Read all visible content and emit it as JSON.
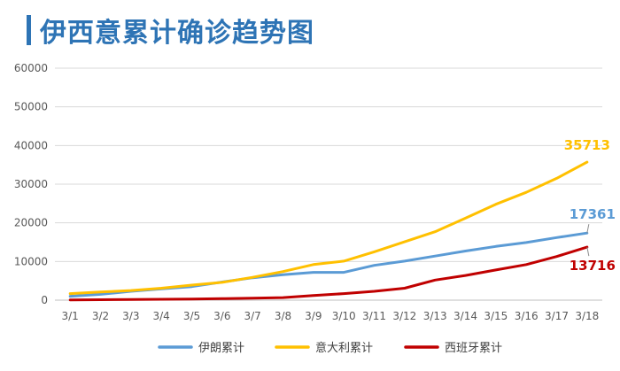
{
  "chart_data": {
    "type": "line",
    "title": "伊西意累计确诊趋势图",
    "categories": [
      "3/1",
      "3/2",
      "3/3",
      "3/4",
      "3/5",
      "3/6",
      "3/7",
      "3/8",
      "3/9",
      "3/10",
      "3/11",
      "3/12",
      "3/13",
      "3/14",
      "3/15",
      "3/16",
      "3/17",
      "3/18"
    ],
    "ylim": [
      0,
      60000
    ],
    "yticks": [
      0,
      10000,
      20000,
      30000,
      40000,
      50000,
      60000
    ],
    "grid": true,
    "legend": "bottom",
    "series": [
      {
        "name": "伊朗累计",
        "color": "#5b9bd5",
        "values": [
          1000,
          1500,
          2300,
          2900,
          3500,
          4700,
          5800,
          6600,
          7200,
          7200,
          9000,
          10100,
          11400,
          12700,
          13900,
          14900,
          16200,
          17361
        ],
        "end_label": "17361"
      },
      {
        "name": "意大利累计",
        "color": "#ffc000",
        "values": [
          1700,
          2100,
          2500,
          3100,
          3900,
          4600,
          5900,
          7400,
          9200,
          10100,
          12500,
          15100,
          17700,
          21200,
          24800,
          27900,
          31500,
          35713
        ],
        "end_label": "35713"
      },
      {
        "name": "西班牙累计",
        "color": "#c00000",
        "values": [
          80,
          110,
          160,
          220,
          280,
          400,
          500,
          670,
          1200,
          1700,
          2300,
          3100,
          5200,
          6400,
          7800,
          9200,
          11300,
          13716
        ],
        "end_label": "13716"
      }
    ]
  }
}
